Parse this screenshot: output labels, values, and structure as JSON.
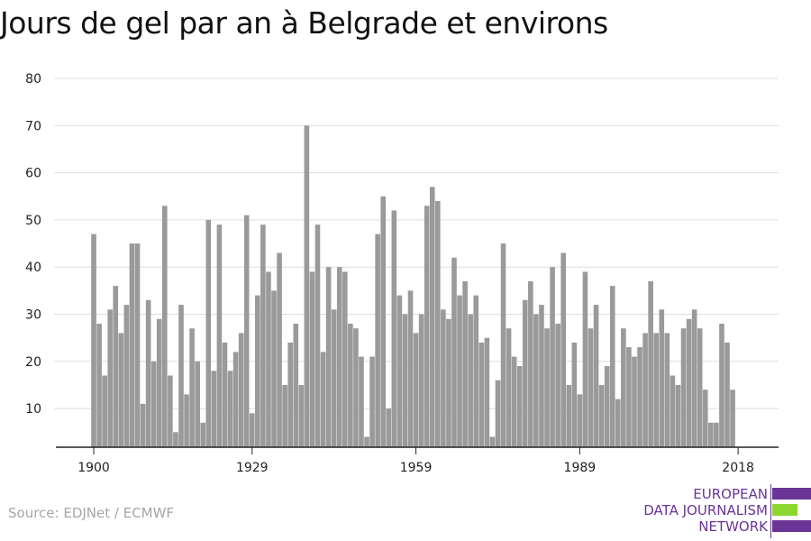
{
  "title": "Jours de gel par an à Belgrade et environs",
  "source": "Source: EDJNet / ECMWF",
  "logo": {
    "lines": [
      "EUROPEAN",
      "DATA JOURNALISM",
      "NETWORK"
    ],
    "colors": {
      "purple": "#6a3597",
      "green": "#8dd62f"
    }
  },
  "chart_data": {
    "type": "bar",
    "title": "Jours de gel par an à Belgrade et environs",
    "xlabel": "",
    "ylabel": "",
    "ylim": [
      2,
      80
    ],
    "yticks": [
      10,
      20,
      30,
      40,
      50,
      60,
      70,
      80
    ],
    "xticks": [
      1900,
      1929,
      1959,
      1989,
      2018
    ],
    "grid": true,
    "bar_color": "#9a9a9a",
    "x": [
      1900,
      1901,
      1902,
      1903,
      1904,
      1905,
      1906,
      1907,
      1908,
      1909,
      1910,
      1911,
      1912,
      1913,
      1914,
      1915,
      1916,
      1917,
      1918,
      1919,
      1920,
      1921,
      1922,
      1923,
      1924,
      1925,
      1926,
      1927,
      1928,
      1929,
      1930,
      1931,
      1932,
      1933,
      1934,
      1935,
      1936,
      1937,
      1938,
      1939,
      1940,
      1941,
      1942,
      1943,
      1944,
      1945,
      1946,
      1947,
      1948,
      1949,
      1950,
      1951,
      1952,
      1953,
      1954,
      1955,
      1956,
      1957,
      1958,
      1959,
      1960,
      1961,
      1962,
      1963,
      1964,
      1965,
      1966,
      1967,
      1968,
      1969,
      1970,
      1971,
      1972,
      1973,
      1974,
      1975,
      1976,
      1977,
      1978,
      1979,
      1980,
      1981,
      1982,
      1983,
      1984,
      1985,
      1986,
      1987,
      1988,
      1989,
      1990,
      1991,
      1992,
      1993,
      1994,
      1995,
      1996,
      1997,
      1998,
      1999,
      2000,
      2001,
      2002,
      2003,
      2004,
      2005,
      2006,
      2007,
      2008,
      2009,
      2010,
      2011,
      2012,
      2013,
      2014,
      2015,
      2016,
      2017,
      2018
    ],
    "values": [
      47,
      28,
      17,
      31,
      36,
      26,
      32,
      45,
      45,
      11,
      33,
      20,
      29,
      53,
      17,
      5,
      32,
      13,
      27,
      20,
      7,
      50,
      18,
      49,
      24,
      18,
      22,
      26,
      51,
      9,
      34,
      49,
      39,
      35,
      43,
      15,
      24,
      28,
      15,
      70,
      39,
      49,
      22,
      40,
      31,
      40,
      39,
      28,
      27,
      21,
      4,
      21,
      47,
      55,
      10,
      52,
      34,
      30,
      35,
      26,
      30,
      53,
      57,
      54,
      31,
      29,
      42,
      34,
      37,
      30,
      34,
      24,
      25,
      4,
      16,
      45,
      27,
      21,
      19,
      33,
      37,
      30,
      32,
      27,
      40,
      28,
      43,
      15,
      24,
      13,
      39,
      27,
      32,
      15,
      19,
      36,
      12,
      27,
      23,
      21,
      23,
      26,
      37,
      26,
      31,
      26,
      17,
      15,
      27,
      29,
      31,
      27,
      14,
      7,
      7,
      28,
      24,
      14,
      0
    ]
  }
}
